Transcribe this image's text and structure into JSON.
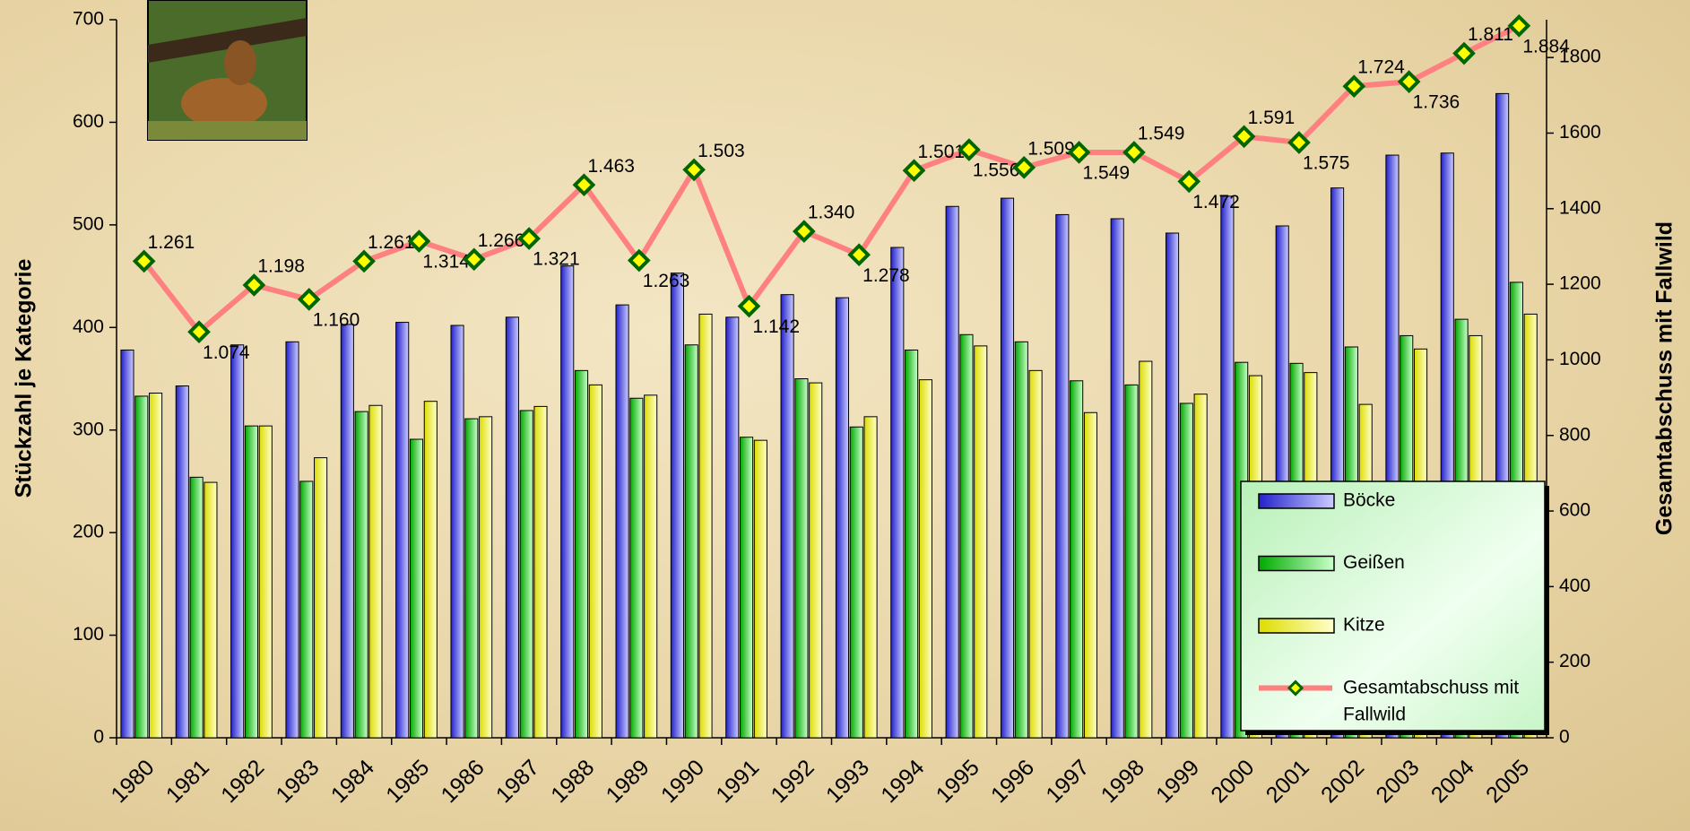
{
  "chart_data": {
    "type": "bar",
    "y_label": "Stückzahl je Kategorie",
    "y2_label": "Gesamtabschuss mit Fallwild",
    "categories": [
      "1980",
      "1981",
      "1982",
      "1983",
      "1984",
      "1985",
      "1986",
      "1987",
      "1988",
      "1989",
      "1990",
      "1991",
      "1992",
      "1993",
      "1994",
      "1995",
      "1996",
      "1997",
      "1998",
      "1999",
      "2000",
      "2001",
      "2002",
      "2003",
      "2004",
      "2005"
    ],
    "series": [
      {
        "name": "Böcke",
        "color": "#6666ff",
        "values": [
          378,
          343,
          383,
          386,
          403,
          405,
          402,
          410,
          460,
          422,
          453,
          410,
          432,
          429,
          478,
          518,
          526,
          510,
          506,
          492,
          528,
          499,
          536,
          568,
          570,
          628
        ]
      },
      {
        "name": "Geißen",
        "color": "#33dd33",
        "values": [
          333,
          254,
          304,
          250,
          318,
          291,
          311,
          319,
          358,
          331,
          383,
          293,
          350,
          303,
          378,
          393,
          386,
          348,
          344,
          326,
          366,
          365,
          381,
          392,
          408,
          444
        ]
      },
      {
        "name": "Kitze",
        "color": "#ffff66",
        "values": [
          336,
          249,
          304,
          273,
          324,
          328,
          313,
          323,
          344,
          334,
          413,
          290,
          346,
          313,
          349,
          382,
          358,
          317,
          367,
          335,
          353,
          356,
          325,
          379,
          392,
          413
        ]
      },
      {
        "name": "Gesamtabschuss mit Fallwild",
        "type": "line",
        "axis": "y2",
        "color": "#ff8080",
        "values": [
          1261,
          1074,
          1198,
          1160,
          1261,
          1314,
          1266,
          1321,
          1463,
          1263,
          1503,
          1142,
          1340,
          1278,
          1501,
          1556,
          1509,
          1549,
          1549,
          1472,
          1591,
          1575,
          1724,
          1736,
          1811,
          1884
        ],
        "value_labels": [
          "1.261",
          "1.074",
          "1.198",
          "1.160",
          "1.261",
          "1.314",
          "1.266",
          "1.321",
          "1.463",
          "1.263",
          "1.503",
          "1.142",
          "1.340",
          "1.278",
          "1.501",
          "1.556",
          "1.509",
          "1.549",
          "1.549",
          "1.472",
          "1.591",
          "1.575",
          "1.724",
          "1.736",
          "1.811",
          "1.884"
        ]
      }
    ],
    "ylim": [
      0,
      700
    ],
    "yticks": [
      0,
      100,
      200,
      300,
      400,
      500,
      600,
      700
    ],
    "y2lim": [
      0,
      1900
    ],
    "y2ticks": [
      0,
      200,
      400,
      600,
      800,
      1000,
      1200,
      1400,
      1600,
      1800
    ],
    "legend": "lower right"
  }
}
